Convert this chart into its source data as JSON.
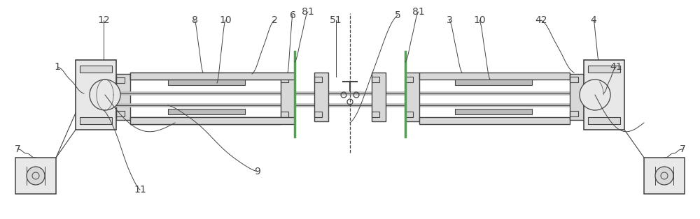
{
  "fig_width": 10.0,
  "fig_height": 3.14,
  "dpi": 100,
  "bg_color": "#ffffff",
  "lc": "#444444",
  "gray1": "#bbbbbb",
  "gray2": "#d8d8d8",
  "gray3": "#e8e8e8",
  "green": "#5a9a5a"
}
